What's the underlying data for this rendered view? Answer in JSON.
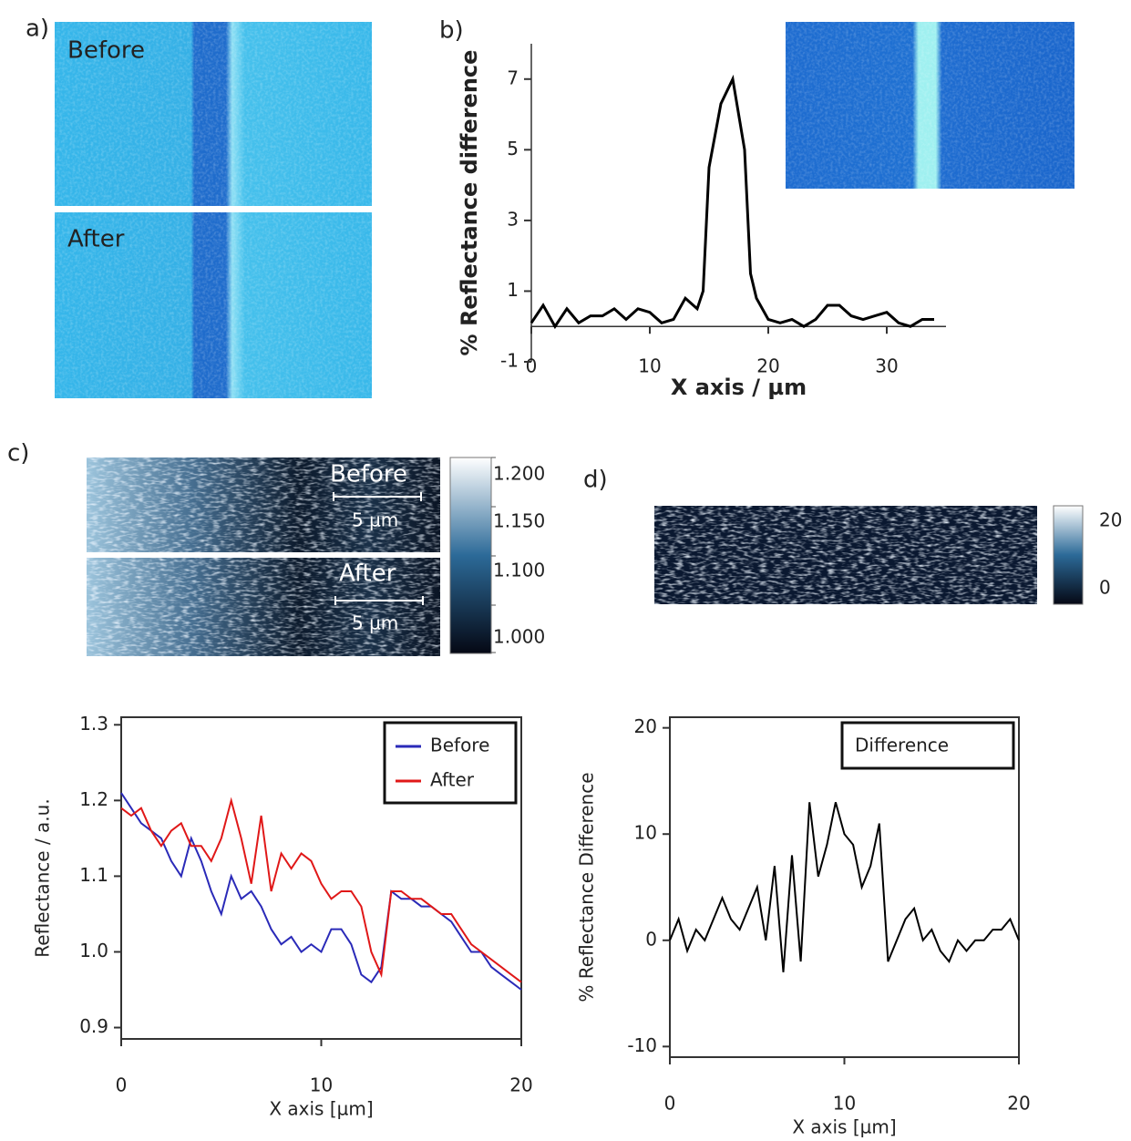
{
  "panels": {
    "a": {
      "label": "a)",
      "top": "Before",
      "bottom": "After"
    },
    "b": {
      "label": "b)"
    },
    "c": {
      "label": "c)",
      "top": "Before",
      "bottom": "After",
      "scale_top": "5 µm",
      "scale_bottom": "5 µm",
      "colorbar": [
        "1.200",
        "1.150",
        "1.100",
        "1.000"
      ]
    },
    "d": {
      "label": "d)",
      "colorbar": [
        "20",
        "0"
      ]
    }
  },
  "chart_data": [
    {
      "type": "line",
      "xlabel": "X axis / µm",
      "ylabel": "% Reflectance difference",
      "frame": "axes",
      "x": [
        0,
        1,
        2,
        3,
        4,
        5,
        6,
        7,
        8,
        9,
        10,
        11,
        12,
        13,
        14,
        14.5,
        15,
        16,
        17,
        18,
        18.5,
        19,
        20,
        21,
        22,
        23,
        24,
        25,
        26,
        27,
        28,
        29,
        30,
        31,
        32,
        33,
        34
      ],
      "series": [
        {
          "color": "#000000",
          "values": [
            0.1,
            0.6,
            0.0,
            0.5,
            0.1,
            0.3,
            0.3,
            0.5,
            0.2,
            0.5,
            0.4,
            0.1,
            0.2,
            0.8,
            0.5,
            1.0,
            4.5,
            6.3,
            7.0,
            5.0,
            1.5,
            0.8,
            0.2,
            0.1,
            0.2,
            0.0,
            0.2,
            0.6,
            0.6,
            0.3,
            0.2,
            0.3,
            0.4,
            0.1,
            0.0,
            0.2,
            0.2
          ]
        }
      ],
      "xlim": [
        0,
        35
      ],
      "ylim": [
        -1,
        8
      ],
      "xticks": [
        0,
        10,
        20,
        30
      ],
      "yticks": [
        -1,
        1,
        3,
        5,
        7
      ]
    },
    {
      "type": "line",
      "xlabel": "X axis [µm]",
      "ylabel": "Reflectance / a.u.",
      "frame": "box",
      "legend": "upper right",
      "x": [
        0,
        0.5,
        1,
        1.5,
        2,
        2.5,
        3,
        3.5,
        4,
        4.5,
        5,
        5.5,
        6,
        6.5,
        7,
        7.5,
        8,
        8.5,
        9,
        9.5,
        10,
        10.5,
        11,
        11.5,
        12,
        12.5,
        13,
        13.5,
        14,
        14.5,
        15,
        15.5,
        16,
        16.5,
        17,
        17.5,
        18,
        18.5,
        19,
        19.5,
        20
      ],
      "series": [
        {
          "name": "Before",
          "color": "#2a2ab8",
          "values": [
            1.21,
            1.19,
            1.17,
            1.16,
            1.15,
            1.12,
            1.1,
            1.15,
            1.12,
            1.08,
            1.05,
            1.1,
            1.07,
            1.08,
            1.06,
            1.03,
            1.01,
            1.02,
            1.0,
            1.01,
            1.0,
            1.03,
            1.03,
            1.01,
            0.97,
            0.96,
            0.98,
            1.08,
            1.07,
            1.07,
            1.06,
            1.06,
            1.05,
            1.04,
            1.02,
            1.0,
            1.0,
            0.98,
            0.97,
            0.96,
            0.95
          ]
        },
        {
          "name": "After",
          "color": "#e01818",
          "values": [
            1.19,
            1.18,
            1.19,
            1.16,
            1.14,
            1.16,
            1.17,
            1.14,
            1.14,
            1.12,
            1.15,
            1.2,
            1.15,
            1.09,
            1.18,
            1.08,
            1.13,
            1.11,
            1.13,
            1.12,
            1.09,
            1.07,
            1.08,
            1.08,
            1.06,
            1.0,
            0.97,
            1.08,
            1.08,
            1.07,
            1.07,
            1.06,
            1.05,
            1.05,
            1.03,
            1.01,
            1.0,
            0.99,
            0.98,
            0.97,
            0.96
          ]
        }
      ],
      "xlim": [
        0,
        20
      ],
      "ylim": [
        0.885,
        1.31
      ],
      "xticks": [
        0,
        10,
        20
      ],
      "yticks": [
        0.9,
        {
          "value": 1,
          "label": "1.0"
        },
        1.1,
        1.2,
        1.3
      ]
    },
    {
      "type": "line",
      "xlabel": "X axis [µm]",
      "ylabel": "% Reflectance Difference",
      "frame": "box",
      "legend": "upper right",
      "x": [
        0,
        0.5,
        1,
        1.5,
        2,
        2.5,
        3,
        3.5,
        4,
        4.5,
        5,
        5.5,
        6,
        6.5,
        7,
        7.5,
        8,
        8.5,
        9,
        9.5,
        10,
        10.5,
        11,
        11.5,
        12,
        12.5,
        13,
        13.5,
        14,
        14.5,
        15,
        15.5,
        16,
        16.5,
        17,
        17.5,
        18,
        18.5,
        19,
        19.5,
        20
      ],
      "series": [
        {
          "name": "Difference",
          "color": "#000000",
          "values": [
            0,
            2,
            -1,
            1,
            0,
            2,
            4,
            2,
            1,
            3,
            5,
            0,
            7,
            -3,
            8,
            -2,
            13,
            6,
            9,
            13,
            10,
            9,
            5,
            7,
            11,
            -2,
            0,
            2,
            3,
            0,
            1,
            -1,
            -2,
            0,
            -1,
            0,
            0,
            1,
            1,
            2,
            0
          ]
        }
      ],
      "xlim": [
        0,
        20
      ],
      "ylim": [
        -11,
        21
      ],
      "xticks": [
        0,
        10,
        20
      ],
      "yticks": [
        -10,
        0,
        10,
        20
      ]
    }
  ]
}
